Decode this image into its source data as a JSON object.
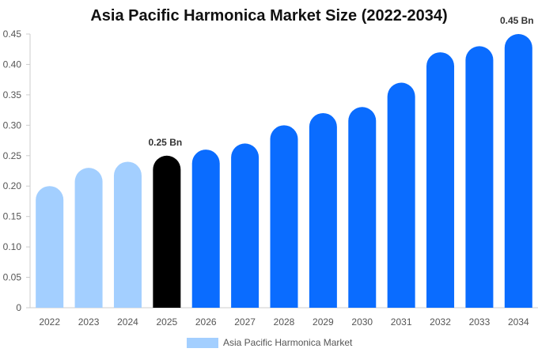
{
  "chart_data": {
    "type": "bar",
    "title": "Asia Pacific Harmonica Market Size (2022-2034)",
    "categories": [
      "2022",
      "2023",
      "2024",
      "2025",
      "2026",
      "2027",
      "2028",
      "2029",
      "2030",
      "2031",
      "2032",
      "2033",
      "2034"
    ],
    "series": [
      {
        "name": "Asia Pacific Harmonica Market",
        "values": [
          0.2,
          0.23,
          0.24,
          0.25,
          0.26,
          0.27,
          0.3,
          0.32,
          0.33,
          0.37,
          0.42,
          0.43,
          0.45
        ]
      }
    ],
    "bar_colors": [
      "#a3cfff",
      "#a3cfff",
      "#a3cfff",
      "#000000",
      "#0a6cff",
      "#0a6cff",
      "#0a6cff",
      "#0a6cff",
      "#0a6cff",
      "#0a6cff",
      "#0a6cff",
      "#0a6cff",
      "#0a6cff"
    ],
    "y_ticks": [
      "0",
      "0.05",
      "0.10",
      "0.15",
      "0.20",
      "0.25",
      "0.30",
      "0.35",
      "0.40",
      "0.45"
    ],
    "ylim": [
      0,
      0.45
    ],
    "data_labels": [
      {
        "category": "2025",
        "text": "0.25 Bn"
      },
      {
        "category": "2034",
        "text": "0.45 Bn"
      }
    ],
    "legend": {
      "label": "Asia Pacific Harmonica Market",
      "color": "#a3cfff",
      "position": "bottom-center"
    },
    "xlabel": "",
    "ylabel": "",
    "grid": false
  }
}
